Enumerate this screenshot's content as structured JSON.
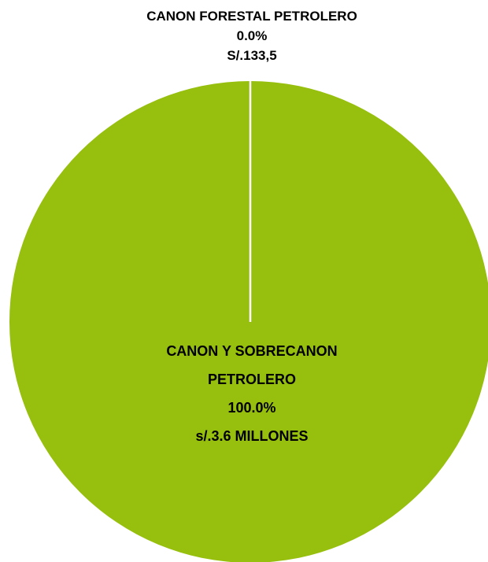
{
  "chart_data": {
    "type": "pie",
    "categories": [
      "CANON FORESTAL PETROLERO",
      "CANON Y SOBRECANON PETROLERO"
    ],
    "values": [
      0,
      100
    ],
    "value_labels": [
      "0.0%",
      "100.0%"
    ],
    "amount_labels": [
      "S/.133,5",
      "s/.3.6 MILLONES"
    ],
    "colors": [
      "#97bf0d",
      "#97bf0d"
    ]
  }
}
